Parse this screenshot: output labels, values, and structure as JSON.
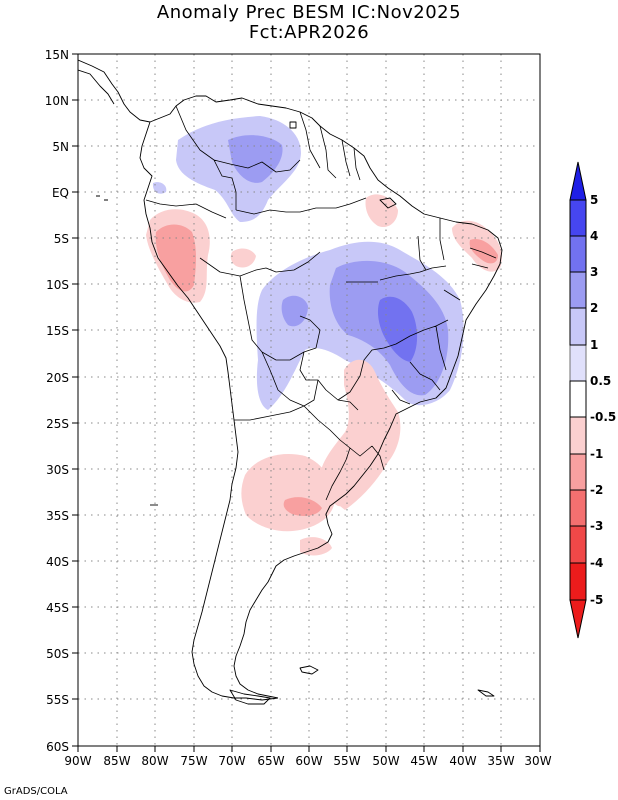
{
  "title": {
    "line1": "Anomaly Prec BESM IC:Nov2025",
    "line2": "Fct:APR2026"
  },
  "map": {
    "lon_range": [
      -90,
      -30
    ],
    "lat_range": [
      -60,
      15
    ],
    "lon_labels": [
      "90W",
      "85W",
      "80W",
      "75W",
      "70W",
      "65W",
      "60W",
      "55W",
      "50W",
      "45W",
      "40W",
      "35W",
      "30W"
    ],
    "lat_labels": [
      "15N",
      "10N",
      "5N",
      "EQ",
      "5S",
      "10S",
      "15S",
      "20S",
      "25S",
      "30S",
      "35S",
      "40S",
      "45S",
      "50S",
      "55S",
      "60S"
    ]
  },
  "colorbar": {
    "labels": [
      "5",
      "4",
      "3",
      "2",
      "1",
      "0.5",
      "-0.5",
      "-1",
      "-2",
      "-3",
      "-4",
      "-5"
    ],
    "colors": {
      "b5": "#1f1fe6",
      "b4": "#4646f0",
      "b3": "#7272f0",
      "b2": "#9c9cf2",
      "b1": "#c8c8f8",
      "white": "#ffffff",
      "r1": "#fbd0d0",
      "r2": "#f8a0a0",
      "r3": "#f47070",
      "r4": "#f04848",
      "r5": "#ec1c1c"
    }
  },
  "credit": "GrADS/COLA",
  "anomaly_regions": [
    {
      "name": "northern-sa-wet-light",
      "class": "b1"
    },
    {
      "name": "venezuela-wet-moderate",
      "class": "b2"
    },
    {
      "name": "central-brazil-wet-light",
      "class": "b1"
    },
    {
      "name": "central-brazil-wet-moderate",
      "class": "b2"
    },
    {
      "name": "minas-gerais-wet-strong",
      "class": "b3"
    },
    {
      "name": "bolivia-wet-moderate",
      "class": "b2"
    },
    {
      "name": "peru-dry-light",
      "class": "r1"
    },
    {
      "name": "peru-dry-moderate",
      "class": "r2"
    },
    {
      "name": "ne-brazil-dry-light",
      "class": "r1"
    },
    {
      "name": "ne-brazil-dry-moderate",
      "class": "r2"
    },
    {
      "name": "south-brazil-dry-light",
      "class": "r1"
    },
    {
      "name": "argentina-dry-light",
      "class": "r1"
    },
    {
      "name": "argentina-dry-moderate",
      "class": "r2"
    }
  ]
}
